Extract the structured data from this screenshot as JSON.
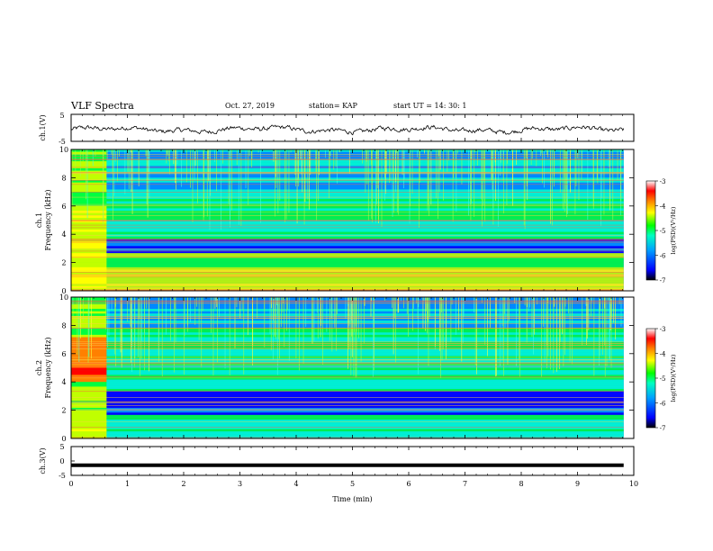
{
  "header": {
    "title": "VLF Spectra",
    "date": "Oct. 27, 2019",
    "station": "station= KAP",
    "start": "start UT =  14: 30: 1"
  },
  "chart_data": [
    {
      "type": "line",
      "panel": "ch1-waveform",
      "ylabel": "ch.1(V)",
      "ylim": [
        -5,
        5
      ],
      "yticks": [
        "5",
        "-5"
      ],
      "xlim": [
        0,
        10
      ],
      "series": [
        {
          "values": [
            0,
            1,
            -1,
            2,
            -0.5,
            1.5,
            -1.5,
            1,
            0,
            2,
            -1,
            0.5,
            1,
            -0.5,
            1.5,
            0,
            -1,
            1,
            0.5,
            -0.5
          ]
        }
      ]
    },
    {
      "type": "heatmap",
      "panel": "ch1-spectrogram",
      "ylabel": "ch.1\nFrequency (kHz)",
      "ylabel_lines": [
        "ch.1",
        "Frequency (kHz)"
      ],
      "ylim": [
        0,
        10
      ],
      "yticks": [
        "0",
        "2",
        "4",
        "6",
        "8",
        "10"
      ],
      "xlim": [
        0,
        10
      ],
      "colorbar": {
        "label": "log(PSD)(V²/Hz)",
        "ticks": [
          "-3",
          "-4",
          "-5",
          "-6",
          "-7"
        ],
        "range": [
          -7,
          -3
        ]
      }
    },
    {
      "type": "heatmap",
      "panel": "ch2-spectrogram",
      "ylabel_lines": [
        "ch.2",
        "Frequency (kHz)"
      ],
      "ylim": [
        0,
        10
      ],
      "yticks": [
        "0",
        "2",
        "4",
        "6",
        "8",
        "10"
      ],
      "xlim": [
        0,
        10
      ],
      "colorbar": {
        "label": "log(PSD)(V²/Hz)",
        "ticks": [
          "-3",
          "-4",
          "-5",
          "-6",
          "-7"
        ],
        "range": [
          -7,
          -3
        ]
      }
    },
    {
      "type": "line",
      "panel": "ch3-waveform",
      "ylabel": "ch.3(V)",
      "ylim": [
        -5,
        5
      ],
      "yticks": [
        "5",
        "0",
        "-5"
      ],
      "xlim": [
        0,
        10
      ],
      "xticks": [
        "0",
        "1",
        "2",
        "3",
        "4",
        "5",
        "6",
        "7",
        "8",
        "9",
        "10"
      ],
      "xlabel": "Time (min)",
      "series": [
        {
          "values": [
            -1.5,
            -1.5
          ]
        }
      ]
    }
  ],
  "colors": {
    "cmap": [
      "#00007a",
      "#0000ff",
      "#0090ff",
      "#00ffd0",
      "#00ff40",
      "#c0ff00",
      "#ffff00",
      "#ff8000",
      "#ff0000",
      "#ff8080",
      "#ffffff"
    ]
  }
}
